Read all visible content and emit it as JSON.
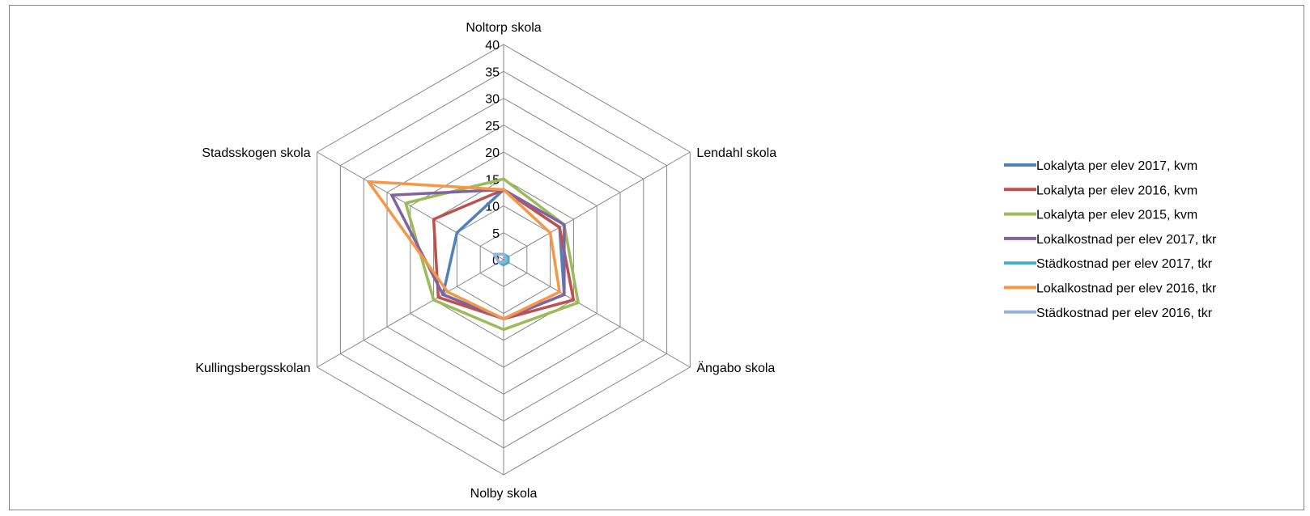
{
  "chart_data": {
    "type": "radar",
    "title": "",
    "categories": [
      "Noltorp skola",
      "Lendahl skola",
      "Ängabo skola",
      "Nolby skola",
      "Kullingsbergsskolan",
      "Stadsskogen skola"
    ],
    "rlim": [
      0,
      40
    ],
    "ticks": [
      0,
      5,
      10,
      15,
      20,
      25,
      30,
      35,
      40
    ],
    "grid": true,
    "legend_position": "right",
    "series": [
      {
        "name": "Lokalyta per elev 2017, kvm",
        "color": "#4f81bd",
        "values": [
          13,
          12,
          13,
          11,
          13,
          10
        ]
      },
      {
        "name": "Lokalyta per elev 2016, kvm",
        "color": "#c0504d",
        "values": [
          13,
          12,
          15,
          11,
          14,
          15
        ]
      },
      {
        "name": "Lokalyta per elev 2015, kvm",
        "color": "#9bbb59",
        "values": [
          15,
          13,
          16,
          13,
          15,
          21
        ]
      },
      {
        "name": "Lokalkostnad per elev     2017, tkr",
        "color": "#8064a2",
        "values": [
          13,
          13,
          13,
          11,
          13,
          24
        ]
      },
      {
        "name": "Städkostnad per elev 2017, tkr",
        "color": "#4bacc6",
        "values": [
          1,
          1,
          1,
          1,
          1,
          2
        ]
      },
      {
        "name": "Lokalkostnad per elev     2016, tkr",
        "color": "#f79646",
        "values": [
          13,
          10,
          12,
          11,
          12,
          29
        ]
      },
      {
        "name": "Städkostnad per elev 2016, tkr",
        "color": "#95b3d7",
        "values": [
          1,
          0.5,
          0.5,
          0.5,
          1,
          2
        ]
      }
    ]
  }
}
